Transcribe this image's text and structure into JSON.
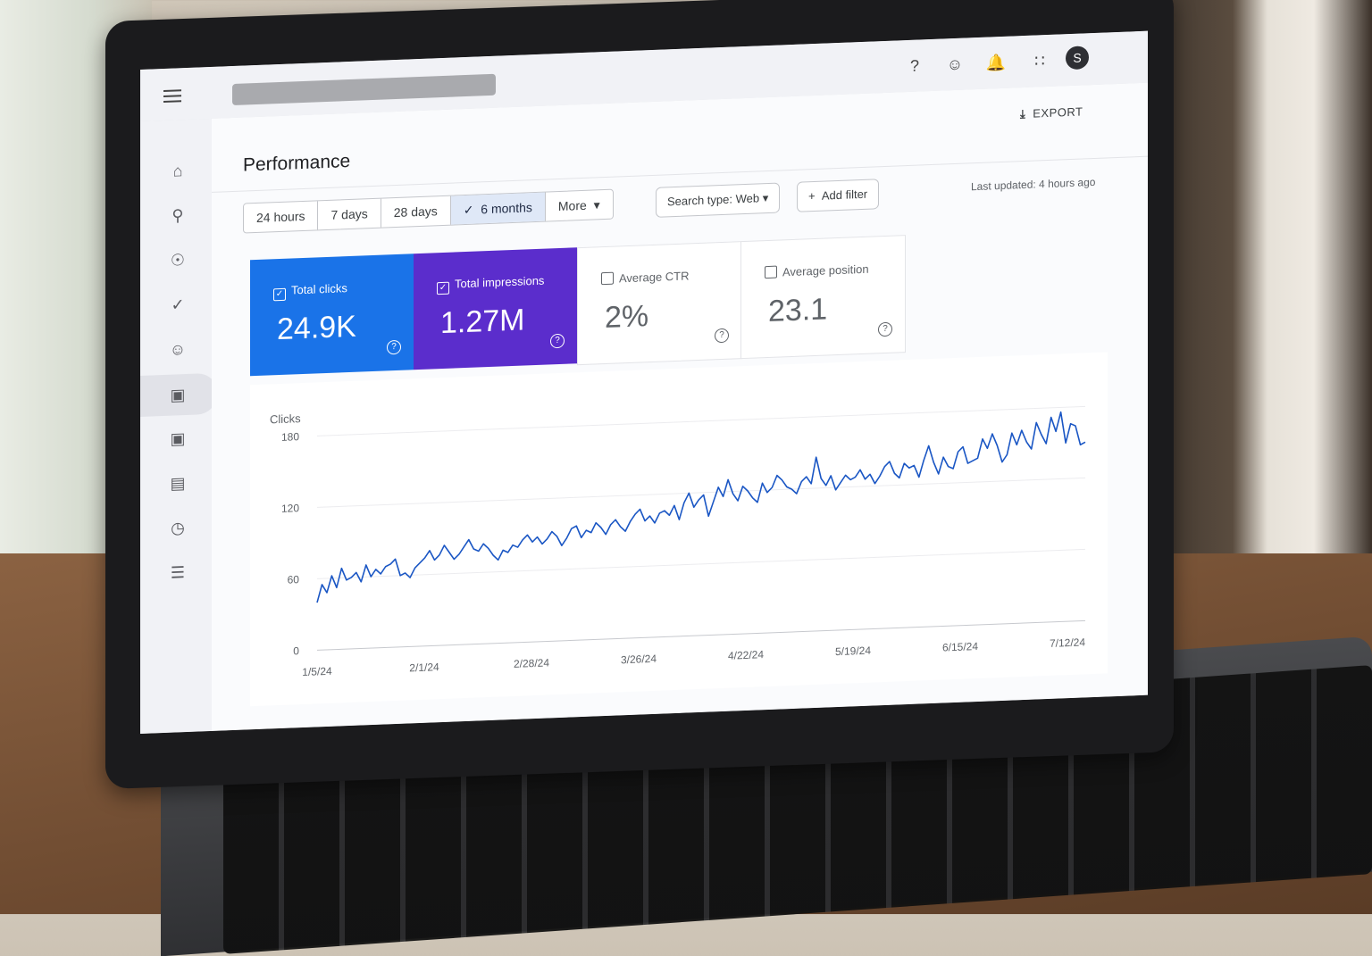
{
  "header": {
    "export_label": "EXPORT",
    "avatar_initial": "S"
  },
  "page": {
    "title": "Performance"
  },
  "date_range": {
    "options": [
      "24 hours",
      "7 days",
      "28 days",
      "6 months",
      "More"
    ],
    "selected": "6 months"
  },
  "filters": {
    "search_type": "Search type: Web",
    "add_filter": "Add filter",
    "last_updated": "Last updated: 4 hours ago"
  },
  "metrics": [
    {
      "label": "Total clicks",
      "value": "24.9K",
      "checked": true,
      "color": "#1a73e8"
    },
    {
      "label": "Total impressions",
      "value": "1.27M",
      "checked": true,
      "color": "#5b2dcc"
    },
    {
      "label": "Average CTR",
      "value": "2%",
      "checked": false
    },
    {
      "label": "Average position",
      "value": "23.1",
      "checked": false
    }
  ],
  "chart_data": {
    "type": "line",
    "ylabel": "Clicks",
    "ylim": [
      0,
      180
    ],
    "yticks": [
      0,
      60,
      120,
      180
    ],
    "x_tick_labels": [
      "1/5/24",
      "2/1/24",
      "2/28/24",
      "3/26/24",
      "4/22/24",
      "5/19/24",
      "6/15/24",
      "7/12/24"
    ],
    "x_range": [
      "1/5/24",
      "7/17/24"
    ],
    "grid": true,
    "line_color": "#1a56c4",
    "series": [
      {
        "values": [
          40,
          55,
          48,
          62,
          52,
          68,
          58,
          60,
          64,
          56,
          70,
          60,
          66,
          62,
          68,
          70,
          74,
          60,
          62,
          58,
          66,
          70,
          74,
          80,
          72,
          76,
          84,
          78,
          72,
          76,
          82,
          88,
          80,
          78,
          84,
          80,
          74,
          70,
          78,
          76,
          82,
          80,
          86,
          90,
          84,
          88,
          82,
          86,
          92,
          88,
          80,
          86,
          94,
          96,
          86,
          92,
          90,
          98,
          94,
          88,
          96,
          100,
          94,
          90,
          98,
          104,
          108,
          98,
          102,
          96,
          104,
          106,
          102,
          110,
          98,
          112,
          120,
          108,
          114,
          118,
          100,
          112,
          124,
          116,
          130,
          118,
          112,
          124,
          120,
          114,
          110,
          126,
          118,
          122,
          132,
          128,
          122,
          120,
          116,
          126,
          130,
          124,
          146,
          128,
          122,
          130,
          118,
          124,
          130,
          126,
          128,
          134,
          126,
          130,
          122,
          128,
          136,
          140,
          130,
          126,
          138,
          134,
          136,
          126,
          140,
          152,
          138,
          128,
          142,
          134,
          132,
          146,
          150,
          136,
          138,
          140,
          156,
          148,
          160,
          150,
          136,
          142,
          160,
          150,
          162,
          152,
          146,
          168,
          158,
          150,
          172,
          160,
          176,
          150,
          166,
          164,
          148,
          150
        ]
      }
    ]
  }
}
